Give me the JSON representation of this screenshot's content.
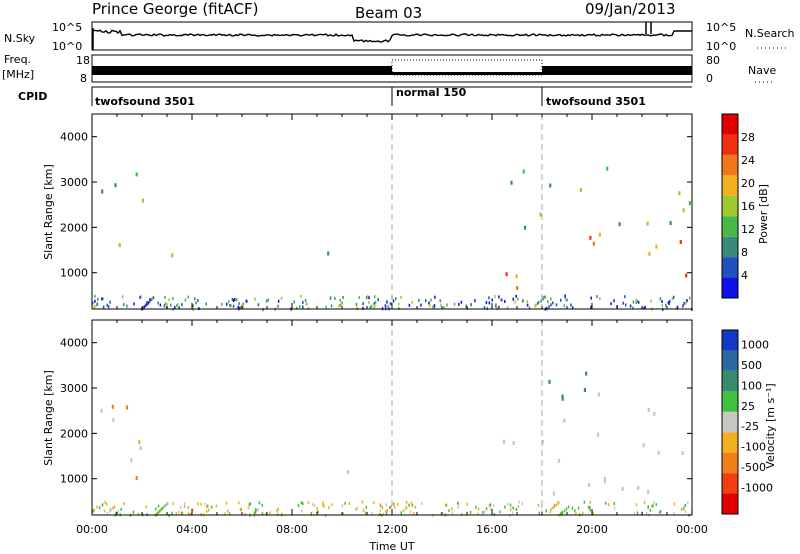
{
  "header": {
    "station": "Prince George (fitACF)",
    "beam": "Beam 03",
    "date": "09/Jan/2013"
  },
  "summary_panel": {
    "left_labels": {
      "nsky": "N.Sky",
      "freq": "Freq.",
      "freq_unit": "[MHz]",
      "cpid": "CPID"
    },
    "right_labels": {
      "nsearch": "N.Search",
      "nave": "Nave"
    },
    "noise_ticks_left": [
      "10^5",
      "10^0"
    ],
    "noise_ticks_right": [
      "10^5",
      "10^0"
    ],
    "freq_ticks": [
      "18",
      "8"
    ],
    "nave_ticks": [
      "80",
      "0"
    ],
    "cpid_segments": [
      {
        "label": "twofsound 3501",
        "start_hour": 0,
        "end_hour": 12
      },
      {
        "label": "normal 150",
        "start_hour": 12,
        "end_hour": 18
      },
      {
        "label": "twofsound 3501",
        "start_hour": 18,
        "end_hour": 24
      }
    ]
  },
  "chart_data": [
    {
      "type": "heatmap",
      "panel": "power",
      "ylabel": "Slant Range [km]",
      "xlabel": "",
      "xlim": [
        0,
        24
      ],
      "ylim": [
        200,
        4500
      ],
      "yticks": [
        "1000",
        "2000",
        "3000",
        "4000"
      ],
      "colorbar": {
        "label": "Power [dB]",
        "ticks": [
          "4",
          "8",
          "12",
          "16",
          "20",
          "24",
          "28"
        ],
        "colors": [
          "#1010e8",
          "#2050c0",
          "#3a8a7a",
          "#48b848",
          "#a0c830",
          "#f0b020",
          "#f07818",
          "#f03010",
          "#e00000"
        ]
      },
      "regions": [
        {
          "t0": 0.1,
          "t1": 1.6,
          "r0": 900,
          "r1": 1700,
          "level": 20
        },
        {
          "t0": 0.3,
          "t1": 2.6,
          "r0": 1800,
          "r1": 3500,
          "level": 12
        },
        {
          "t0": 2.2,
          "t1": 3.3,
          "r0": 1000,
          "r1": 2000,
          "level": 20
        },
        {
          "t0": 6.4,
          "t1": 7.0,
          "r0": 1100,
          "r1": 1700,
          "level": 12
        },
        {
          "t0": 9.2,
          "t1": 11.2,
          "r0": 1100,
          "r1": 1500,
          "level": 6
        },
        {
          "t0": 10.0,
          "t1": 11.5,
          "r0": 500,
          "r1": 700,
          "level": 10
        },
        {
          "t0": 12.3,
          "t1": 12.8,
          "r0": 1100,
          "r1": 1400,
          "level": 8
        },
        {
          "t0": 16.5,
          "t1": 18.2,
          "r0": 1600,
          "r1": 3500,
          "level": 12
        },
        {
          "t0": 16.4,
          "t1": 24.0,
          "r0": 700,
          "r1": 1900,
          "level": 24
        },
        {
          "t0": 18.0,
          "t1": 24.0,
          "r0": 2100,
          "r1": 3400,
          "level": 12
        }
      ]
    },
    {
      "type": "heatmap",
      "panel": "velocity",
      "ylabel": "Slant Range [km]",
      "xlabel": "Time UT",
      "xlim": [
        0,
        24
      ],
      "ylim": [
        200,
        4500
      ],
      "yticks": [
        "1000",
        "2000",
        "3000",
        "4000"
      ],
      "xticks": [
        "00:00",
        "04:00",
        "08:00",
        "12:00",
        "16:00",
        "20:00",
        "00:00"
      ],
      "colorbar": {
        "label": "Velocity [m s⁻¹]",
        "ticks": [
          "1000",
          "500",
          "100",
          "25",
          "-25",
          "-100",
          "-500",
          "-1000"
        ],
        "colors": [
          "#1438c8",
          "#2a6aa0",
          "#3a8a70",
          "#40c040",
          "#c8c8c0",
          "#f0b020",
          "#f08018",
          "#f04010",
          "#e00000"
        ]
      },
      "regions": [
        {
          "t0": 0.1,
          "t1": 2.6,
          "r0": 1100,
          "r1": 2600,
          "level": 0
        },
        {
          "t0": 1.5,
          "t1": 3.4,
          "r0": 1000,
          "r1": 2000,
          "level": -100
        },
        {
          "t0": 0.5,
          "t1": 2.4,
          "r0": 2600,
          "r1": 3500,
          "level": -100
        },
        {
          "t0": 6.5,
          "t1": 7.0,
          "r0": 1100,
          "r1": 1700,
          "level": -500
        },
        {
          "t0": 9.2,
          "t1": 11.2,
          "r0": 1100,
          "r1": 1500,
          "level": 0
        },
        {
          "t0": 10.0,
          "t1": 11.5,
          "r0": 450,
          "r1": 650,
          "level": -250
        },
        {
          "t0": 16.4,
          "t1": 24.0,
          "r0": 700,
          "r1": 3000,
          "level": 0
        },
        {
          "t0": 18.0,
          "t1": 24.0,
          "r0": 2700,
          "r1": 3400,
          "level": 300
        }
      ]
    }
  ]
}
